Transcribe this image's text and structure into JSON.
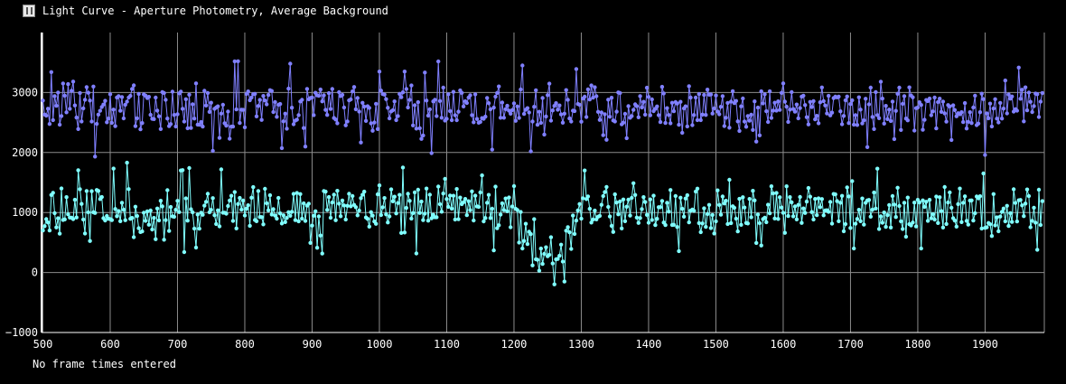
{
  "window": {
    "title": "Light Curve - Aperture Photometry, Average Background",
    "icon": "light-curve-app-icon"
  },
  "footer": {
    "status": "No frame times entered"
  },
  "colors": {
    "background": "#000000",
    "grid": "#8c8c8c",
    "text": "#ffffff",
    "series_upper": "#8080ff",
    "series_lower": "#80ffff"
  },
  "chart_data": {
    "type": "line",
    "title": "Light Curve - Aperture Photometry, Average Background",
    "xlabel": "",
    "ylabel": "",
    "xlim": [
      498,
      1988
    ],
    "ylim": [
      -1000,
      4000
    ],
    "xticks": [
      500,
      600,
      700,
      800,
      900,
      1000,
      1100,
      1200,
      1300,
      1400,
      1500,
      1600,
      1700,
      1800,
      1900
    ],
    "yticks": [
      -1000,
      0,
      1000,
      2000,
      3000
    ],
    "grid": true,
    "markers": true,
    "series": [
      {
        "color": "#8080ff",
        "x_start": 500,
        "x_end": 1985,
        "mean": 2750,
        "notable_points": [
          [
            529,
            3150
          ],
          [
            575,
            3100
          ],
          [
            868,
            3480
          ],
          [
            890,
            2100
          ],
          [
            1001,
            3350
          ],
          [
            1037,
            3350
          ],
          [
            1078,
            1990
          ],
          [
            1212,
            3450
          ],
          [
            1225,
            2020
          ],
          [
            1900,
            1960
          ],
          [
            1930,
            3200
          ]
        ]
      },
      {
        "color": "#80ffff",
        "x_start": 500,
        "x_end": 1985,
        "mean": 1050,
        "notable_points": [
          [
            527,
            1400
          ],
          [
            562,
            650
          ],
          [
            626,
            1830
          ],
          [
            704,
            1700
          ],
          [
            1036,
            1750
          ],
          [
            1098,
            1560
          ],
          [
            1212,
            400
          ],
          [
            1237,
            30
          ],
          [
            1276,
            -150
          ],
          [
            1306,
            1700
          ],
          [
            1741,
            1730
          ],
          [
            1804,
            400
          ],
          [
            1897,
            1650
          ],
          [
            1977,
            380
          ]
        ]
      }
    ]
  }
}
